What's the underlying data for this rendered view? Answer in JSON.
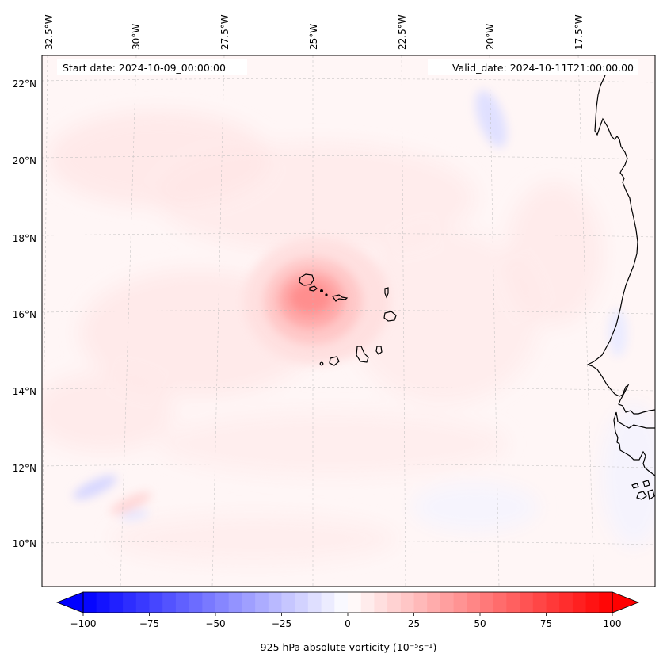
{
  "map": {
    "projection": "Lambert conformal (curved graticule)",
    "extent": {
      "lon_min": -32.7,
      "lon_max": -15.9,
      "lat_min": 8.9,
      "lat_max": 22.8
    },
    "lon_ticks": [
      {
        "value": -32.5,
        "label": "32.5°W"
      },
      {
        "value": -30.0,
        "label": "30°W"
      },
      {
        "value": -27.5,
        "label": "27.5°W"
      },
      {
        "value": -25.0,
        "label": "25°W"
      },
      {
        "value": -22.5,
        "label": "22.5°W"
      },
      {
        "value": -20.0,
        "label": "20°W"
      },
      {
        "value": -17.5,
        "label": "17.5°W"
      }
    ],
    "lat_ticks": [
      {
        "value": 22,
        "label": "22°N"
      },
      {
        "value": 20,
        "label": "20°N"
      },
      {
        "value": 18,
        "label": "18°N"
      },
      {
        "value": 16,
        "label": "16°N"
      },
      {
        "value": 14,
        "label": "14°N"
      },
      {
        "value": 12,
        "label": "12°N"
      },
      {
        "value": 10,
        "label": "10°N"
      }
    ],
    "start_date_label": "Start date: 2024-10-09_00:00:00",
    "valid_date_label": "Valid_date: 2024-10-11T21:00:00.00",
    "vorticity_max_center": {
      "lon": -25.2,
      "lat": 16.4,
      "value_approx": 40
    },
    "features": [
      "Cape Verde islands",
      "West African coastline (Mauritania, Senegal, Gambia, Guinea-Bissau)"
    ]
  },
  "colorbar": {
    "label": "925 hPa absolute vorticity (10⁻⁵s⁻¹)",
    "min": -100,
    "max": 100,
    "levels": 41,
    "step": 5,
    "extend": "both",
    "cmap": "bwr",
    "colors": {
      "low": "#0000ff",
      "mid": "#ffffff",
      "high": "#ff0000"
    },
    "ticks": [
      {
        "value": -100,
        "label": "−100"
      },
      {
        "value": -75,
        "label": "−75"
      },
      {
        "value": -50,
        "label": "−50"
      },
      {
        "value": -25,
        "label": "−25"
      },
      {
        "value": 0,
        "label": "0"
      },
      {
        "value": 25,
        "label": "25"
      },
      {
        "value": 50,
        "label": "50"
      },
      {
        "value": 75,
        "label": "75"
      },
      {
        "value": 100,
        "label": "100"
      }
    ]
  }
}
